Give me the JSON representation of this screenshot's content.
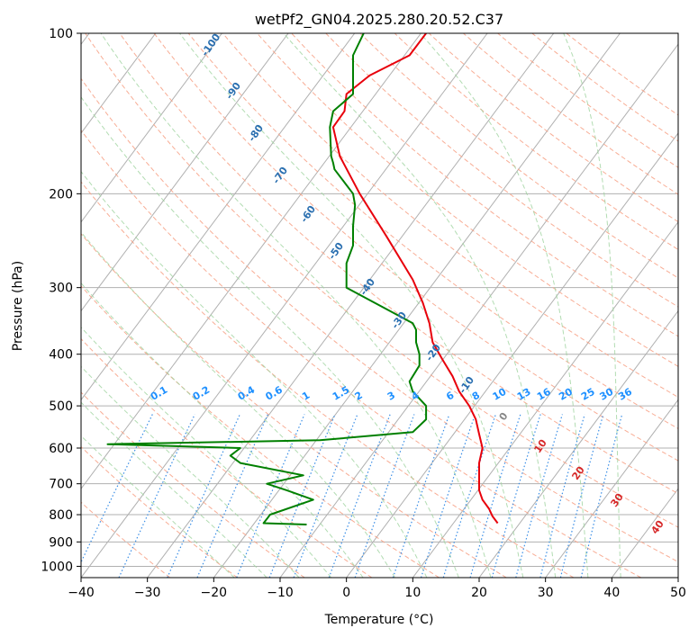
{
  "chart_data": {
    "type": "line",
    "title": "wetPf2_GN04.2025.280.20.52.C37",
    "xlabel": "Temperature (°C)",
    "ylabel": "Pressure (hPa)",
    "xlim": [
      -40,
      50
    ],
    "ylim": [
      1050,
      100
    ],
    "y_scale": "log",
    "grid": true,
    "x_ticks": [
      -40,
      -30,
      -20,
      -10,
      0,
      10,
      20,
      30,
      40,
      50
    ],
    "y_ticks": [
      100,
      200,
      300,
      400,
      500,
      600,
      700,
      800,
      900,
      1000
    ],
    "dry_adiabat_labels": [
      "-100",
      "-90",
      "-80",
      "-70",
      "-60",
      "-50",
      "-40",
      "-30",
      "-20",
      "-10",
      "0",
      "10",
      "20",
      "30",
      "40"
    ],
    "mixing_ratio_labels": [
      "0.1",
      "0.2",
      "0.4",
      "0.6",
      "1",
      "1.5",
      "2",
      "3",
      "4",
      "6",
      "8",
      "10",
      "13",
      "16",
      "20",
      "25",
      "30",
      "36"
    ],
    "series": [
      {
        "color": "#e8000b",
        "x_plot": [
          22.8,
          22,
          21.5,
          20.5,
          20,
          20,
          20,
          20.5,
          20,
          19.5,
          18.5,
          17,
          16,
          14.5,
          13,
          12.5,
          11.5,
          10,
          6,
          2,
          -1,
          -2,
          -0.3,
          0,
          3.5,
          9.5,
          12
        ],
        "p": [
          830,
          805,
          780,
          750,
          720,
          680,
          640,
          600,
          565,
          530,
          500,
          470,
          440,
          410,
          380,
          350,
          320,
          290,
          240,
          200,
          170,
          150,
          140,
          130,
          120,
          110,
          100
        ]
      },
      {
        "color": "#008000",
        "x_plot": [
          -6,
          -12.5,
          -12,
          -11.5,
          -5,
          -9,
          -12,
          -6.5,
          -16,
          -17.5,
          -16,
          -36,
          -4,
          10,
          12,
          12,
          10,
          9.5,
          11,
          11,
          10.5,
          10.5,
          10,
          0,
          0,
          1,
          1,
          1.3,
          1,
          -1.8,
          -2,
          -2.3,
          -2.5,
          -2,
          1,
          1,
          2.6
        ],
        "p": [
          835,
          830,
          815,
          800,
          750,
          720,
          700,
          675,
          640,
          620,
          600,
          590,
          580,
          560,
          530,
          500,
          470,
          450,
          420,
          400,
          380,
          360,
          350,
          300,
          270,
          250,
          230,
          210,
          200,
          180,
          175,
          170,
          150,
          140,
          130,
          110,
          100
        ]
      }
    ]
  }
}
